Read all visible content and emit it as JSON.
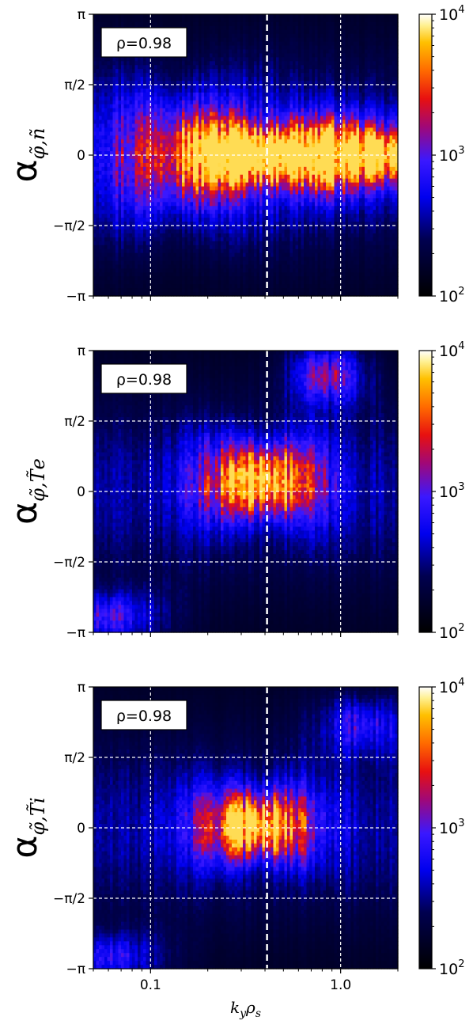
{
  "chart_data": [
    {
      "type": "heatmap",
      "annotation": "ρ=0.98",
      "ylabel_symbol": "α",
      "ylabel_subscript": "φ̃,ñ",
      "xscale": "log",
      "xlim": [
        0.05,
        2.0
      ],
      "ylim": [
        -3.14159,
        3.14159
      ],
      "x_ticks": [
        {
          "value": 0.1,
          "label": "0.1"
        },
        {
          "value": 1.0,
          "label": "1.0"
        }
      ],
      "y_ticks": [
        {
          "value": -3.14159,
          "label": "−π"
        },
        {
          "value": -1.5708,
          "label": "−π/2"
        },
        {
          "value": 0,
          "label": "0"
        },
        {
          "value": 1.5708,
          "label": "π/2"
        },
        {
          "value": 3.14159,
          "label": "π"
        }
      ],
      "xlabel": "",
      "vline": 0.41,
      "colorbar": {
        "scale": "log",
        "range": [
          100,
          10000
        ],
        "ticks": [
          {
            "base": "10",
            "exp": "4"
          },
          {
            "base": "10",
            "exp": "3"
          },
          {
            "base": "10",
            "exp": "2"
          }
        ]
      },
      "blobs": [
        {
          "x": 0.41,
          "y": 0.0,
          "sx": 0.45,
          "sy": 0.55,
          "amp": 1.0
        },
        {
          "x": 1.6,
          "y": 0.0,
          "sx": 0.35,
          "sy": 0.55,
          "amp": 0.75
        },
        {
          "x": 0.15,
          "y": 0.0,
          "sx": 0.5,
          "sy": 1.2,
          "amp": 0.4
        }
      ]
    },
    {
      "type": "heatmap",
      "annotation": "ρ=0.98",
      "ylabel_symbol": "α",
      "ylabel_subscript": "φ̃,T̃e",
      "xscale": "log",
      "xlim": [
        0.05,
        2.0
      ],
      "ylim": [
        -3.14159,
        3.14159
      ],
      "x_ticks": [
        {
          "value": 0.1,
          "label": "0.1"
        },
        {
          "value": 1.0,
          "label": "1.0"
        }
      ],
      "y_ticks": [
        {
          "value": -3.14159,
          "label": "−π"
        },
        {
          "value": -1.5708,
          "label": "−π/2"
        },
        {
          "value": 0,
          "label": "0"
        },
        {
          "value": 1.5708,
          "label": "π/2"
        },
        {
          "value": 3.14159,
          "label": "π"
        }
      ],
      "xlabel": "",
      "vline": 0.41,
      "colorbar": {
        "scale": "log",
        "range": [
          100,
          10000
        ],
        "ticks": [
          {
            "base": "10",
            "exp": "4"
          },
          {
            "base": "10",
            "exp": "3"
          },
          {
            "base": "10",
            "exp": "2"
          }
        ]
      },
      "blobs": [
        {
          "x": 0.38,
          "y": 0.25,
          "sx": 0.3,
          "sy": 0.7,
          "amp": 0.95
        },
        {
          "x": 0.85,
          "y": 2.6,
          "sx": 0.2,
          "sy": 0.6,
          "amp": 0.5
        },
        {
          "x": 0.06,
          "y": -2.8,
          "sx": 0.3,
          "sy": 0.5,
          "amp": 0.4
        }
      ]
    },
    {
      "type": "heatmap",
      "annotation": "ρ=0.98",
      "ylabel_symbol": "α",
      "ylabel_subscript": "φ̃,T̃i",
      "xscale": "log",
      "xlim": [
        0.05,
        2.0
      ],
      "ylim": [
        -3.14159,
        3.14159
      ],
      "x_ticks": [
        {
          "value": 0.1,
          "label": "0.1"
        },
        {
          "value": 1.0,
          "label": "1.0"
        }
      ],
      "y_ticks": [
        {
          "value": -3.14159,
          "label": "−π"
        },
        {
          "value": -1.5708,
          "label": "−π/2"
        },
        {
          "value": 0,
          "label": "0"
        },
        {
          "value": 1.5708,
          "label": "π/2"
        },
        {
          "value": 3.14159,
          "label": "π"
        }
      ],
      "xlabel": "k_y ρ_s",
      "xlabel_main": "k",
      "xlabel_sub1": "y",
      "xlabel_mid": "ρ",
      "xlabel_sub2": "s",
      "vline": 0.41,
      "colorbar": {
        "scale": "log",
        "range": [
          100,
          10000
        ],
        "ticks": [
          {
            "base": "10",
            "exp": "4"
          },
          {
            "base": "10",
            "exp": "3"
          },
          {
            "base": "10",
            "exp": "2"
          }
        ]
      },
      "blobs": [
        {
          "x": 0.36,
          "y": 0.05,
          "sx": 0.3,
          "sy": 0.65,
          "amp": 0.95
        },
        {
          "x": 1.3,
          "y": 2.3,
          "sx": 0.25,
          "sy": 0.6,
          "amp": 0.35
        },
        {
          "x": 0.06,
          "y": -2.9,
          "sx": 0.3,
          "sy": 0.5,
          "amp": 0.35
        }
      ]
    }
  ]
}
